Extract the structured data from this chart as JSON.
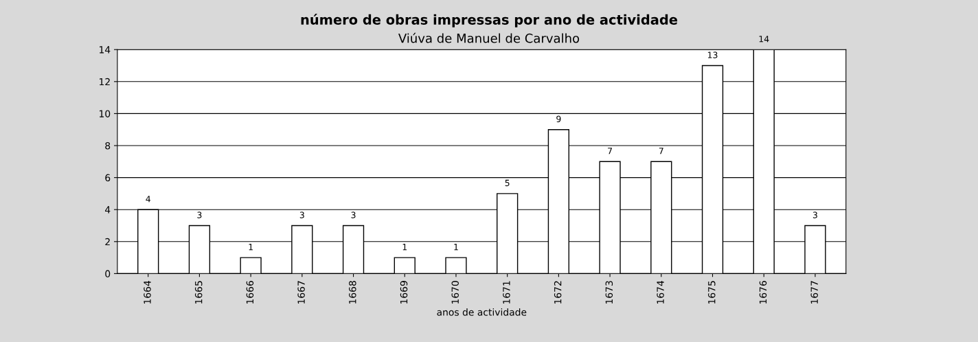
{
  "chart_data": {
    "type": "bar",
    "title": "número de obras impressas por ano de actividade",
    "subtitle": "Viúva de Manuel de Carvalho",
    "xlabel": "anos de actividade",
    "categories": [
      "1664",
      "1665",
      "1666",
      "1667",
      "1668",
      "1669",
      "1670",
      "1671",
      "1672",
      "1673",
      "1674",
      "1675",
      "1676",
      "1677"
    ],
    "values": [
      4,
      3,
      1,
      3,
      3,
      1,
      1,
      5,
      9,
      7,
      7,
      13,
      14,
      3
    ],
    "color": "#ffffff",
    "ylim": [
      0,
      14
    ],
    "yticks": [
      0,
      2,
      4,
      6,
      8,
      10,
      12,
      14
    ],
    "grid": "y",
    "data_labels": true
  }
}
